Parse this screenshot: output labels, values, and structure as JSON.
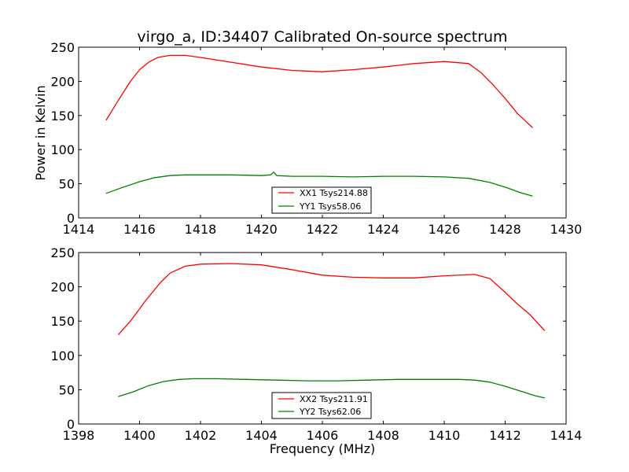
{
  "chart_data": [
    {
      "type": "line",
      "title": "virgo_a, ID:34407 Calibrated On-source spectrum",
      "xlabel": "",
      "ylabel": "Power in Kelvin",
      "xlim": [
        1414,
        1430
      ],
      "ylim": [
        0,
        250
      ],
      "x_ticks": [
        "1414",
        "1416",
        "1418",
        "1420",
        "1422",
        "1424",
        "1426",
        "1428",
        "1430"
      ],
      "y_ticks": [
        "0",
        "50",
        "100",
        "150",
        "200",
        "250"
      ],
      "grid": false,
      "legend_placement": "lower center",
      "series": [
        {
          "name": "XX1 Tsys214.88",
          "color": "#ff0000",
          "x": [
            1414.9,
            1415.3,
            1415.7,
            1416.0,
            1416.3,
            1416.6,
            1417.0,
            1417.5,
            1418.0,
            1419.0,
            1420.0,
            1421.0,
            1422.0,
            1423.0,
            1424.0,
            1425.0,
            1426.0,
            1426.8,
            1427.2,
            1427.6,
            1428.0,
            1428.4,
            1428.9
          ],
          "y": [
            143,
            172,
            200,
            217,
            228,
            235,
            238,
            238,
            235,
            228,
            221,
            216,
            214,
            217,
            221,
            226,
            229,
            226,
            213,
            195,
            175,
            153,
            132
          ]
        },
        {
          "name": "YY1 Tsys58.06",
          "color": "#008000",
          "x": [
            1414.9,
            1415.4,
            1416.0,
            1416.5,
            1417.0,
            1417.5,
            1418.0,
            1419.0,
            1420.0,
            1420.3,
            1420.4,
            1420.5,
            1421.0,
            1422.0,
            1423.0,
            1424.0,
            1425.0,
            1426.0,
            1426.8,
            1427.5,
            1428.0,
            1428.5,
            1428.9
          ],
          "y": [
            36,
            44,
            53,
            59,
            62,
            63,
            63,
            63,
            62,
            63,
            67,
            62,
            61,
            61,
            60,
            61,
            61,
            60,
            58,
            52,
            45,
            37,
            32
          ]
        }
      ]
    },
    {
      "type": "line",
      "title": "",
      "xlabel": "Frequency (MHz)",
      "ylabel": "",
      "xlim": [
        1398,
        1414
      ],
      "ylim": [
        0,
        250
      ],
      "x_ticks": [
        "1398",
        "1400",
        "1402",
        "1404",
        "1406",
        "1408",
        "1410",
        "1412",
        "1414"
      ],
      "y_ticks": [
        "0",
        "50",
        "100",
        "150",
        "200",
        "250"
      ],
      "grid": false,
      "legend_placement": "lower center",
      "series": [
        {
          "name": "XX2 Tsys211.91",
          "color": "#ff0000",
          "x": [
            1399.3,
            1399.7,
            1400.2,
            1400.7,
            1401.0,
            1401.5,
            1402.0,
            1403.0,
            1404.0,
            1405.0,
            1406.0,
            1407.0,
            1408.0,
            1409.0,
            1410.0,
            1411.0,
            1411.5,
            1412.0,
            1412.4,
            1412.8,
            1413.3
          ],
          "y": [
            130,
            150,
            180,
            207,
            220,
            230,
            233,
            234,
            232,
            225,
            217,
            214,
            213,
            213,
            216,
            218,
            212,
            192,
            175,
            160,
            136
          ]
        },
        {
          "name": "YY2 Tsys62.06",
          "color": "#008000",
          "x": [
            1399.3,
            1399.8,
            1400.3,
            1400.8,
            1401.3,
            1401.8,
            1402.5,
            1403.5,
            1404.5,
            1405.5,
            1406.5,
            1407.5,
            1408.5,
            1409.5,
            1410.5,
            1411.0,
            1411.5,
            1412.0,
            1412.5,
            1413.0,
            1413.3
          ],
          "y": [
            40,
            47,
            56,
            62,
            65,
            66,
            66,
            65,
            64,
            63,
            63,
            64,
            65,
            65,
            65,
            64,
            61,
            55,
            48,
            41,
            38
          ]
        }
      ]
    }
  ]
}
